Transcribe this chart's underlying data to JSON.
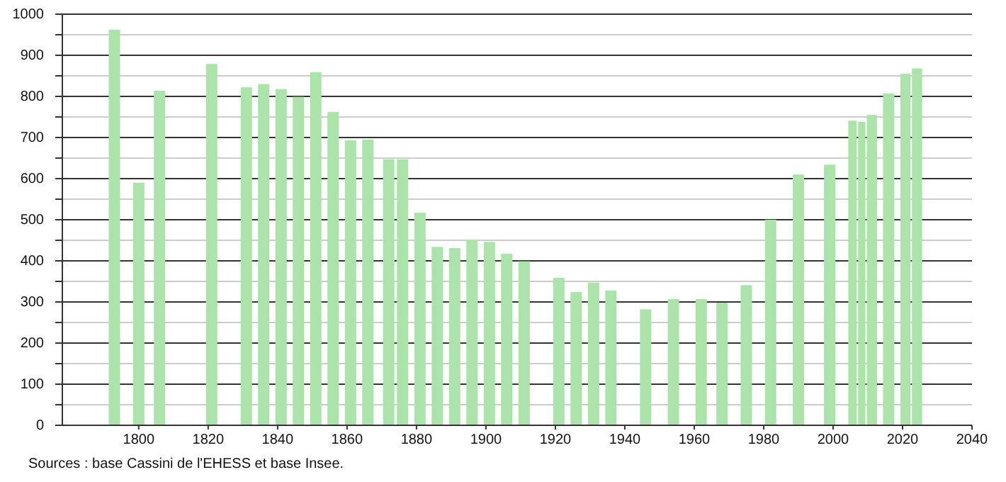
{
  "chart_data": {
    "type": "bar",
    "color": "#abe3ab",
    "grid": "y",
    "x": [
      1793,
      1800,
      1806,
      1821,
      1831,
      1836,
      1841,
      1846,
      1851,
      1856,
      1861,
      1866,
      1872,
      1876,
      1881,
      1886,
      1891,
      1896,
      1901,
      1906,
      1911,
      1921,
      1926,
      1931,
      1936,
      1946,
      1954,
      1962,
      1968,
      1975,
      1982,
      1990,
      1999,
      2006,
      2008,
      2011,
      2016,
      2021,
      2024
    ],
    "values": [
      962,
      590,
      814,
      879,
      822,
      830,
      818,
      799,
      859,
      762,
      693,
      695,
      647,
      647,
      517,
      434,
      431,
      451,
      446,
      417,
      399,
      359,
      324,
      347,
      328,
      282,
      307,
      307,
      298,
      341,
      500,
      610,
      634,
      741,
      738,
      755,
      807,
      855,
      868
    ],
    "xlim": [
      1778,
      2040
    ],
    "xticks": [
      1800,
      1820,
      1840,
      1860,
      1880,
      1900,
      1920,
      1940,
      1960,
      1980,
      2000,
      2020,
      2040
    ],
    "ylim": [
      0,
      1000
    ],
    "yticks": [
      0,
      {
        "value": 50,
        "label": null
      },
      100,
      {
        "value": 150,
        "label": null
      },
      200,
      {
        "value": 250,
        "label": null
      },
      300,
      {
        "value": 350,
        "label": null
      },
      400,
      {
        "value": 450,
        "label": null
      },
      500,
      {
        "value": 550,
        "label": null
      },
      600,
      {
        "value": 650,
        "label": null
      },
      700,
      {
        "value": 750,
        "label": null
      },
      800,
      {
        "value": 850,
        "label": null
      },
      900,
      {
        "value": 950,
        "label": null
      },
      1000
    ],
    "annotations": [
      "Sources : base Cassini de l'EHESS et base Insee."
    ]
  }
}
